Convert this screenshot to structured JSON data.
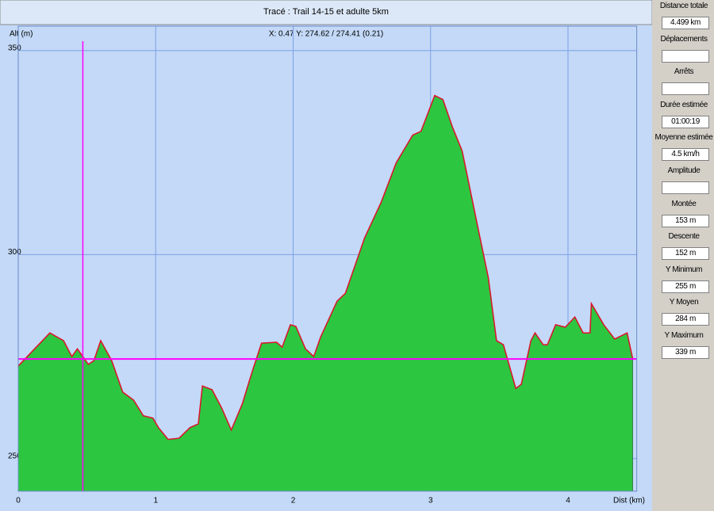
{
  "chart_data": {
    "type": "area",
    "title": "Tracé : Trail 14-15 et adulte 5km",
    "x_label": "Dist (km)",
    "y_label": "Alt (m)",
    "crosshair": {
      "text": "X: 0.47 Y: 274.62 / 274.41 (0.21)",
      "x": 0.47,
      "y": 274.41,
      "color": "#ff00ff"
    },
    "xlim": [
      0,
      4.5
    ],
    "ylim": [
      242,
      356
    ],
    "xticks": [
      0,
      1,
      2,
      3,
      4
    ],
    "yticks": [
      250,
      300,
      350
    ],
    "grid": true,
    "series": [
      {
        "color": "#2cc640",
        "line_color": "#e0102a",
        "x": [
          0,
          0.23,
          0.33,
          0.39,
          0.43,
          0.51,
          0.55,
          0.6,
          0.68,
          0.76,
          0.84,
          0.91,
          0.98,
          1.02,
          1.09,
          1.17,
          1.25,
          1.31,
          1.34,
          1.41,
          1.48,
          1.55,
          1.63,
          1.7,
          1.77,
          1.88,
          1.92,
          1.98,
          2.02,
          2.09,
          2.15,
          2.2,
          2.32,
          2.38,
          2.52,
          2.64,
          2.75,
          2.87,
          2.93,
          3.03,
          3.09,
          3.16,
          3.23,
          3.36,
          3.42,
          3.48,
          3.53,
          3.62,
          3.66,
          3.73,
          3.76,
          3.82,
          3.85,
          3.91,
          3.98,
          4.05,
          4.11,
          4.16,
          4.17,
          4.26,
          4.34,
          4.43,
          4.47
        ],
        "values": [
          272.7,
          280.8,
          278.9,
          275.0,
          276.9,
          273.1,
          274.0,
          278.9,
          274.0,
          266.3,
          264.3,
          260.5,
          259.9,
          257.6,
          254.7,
          255.0,
          257.6,
          258.5,
          267.8,
          266.9,
          262.4,
          257.0,
          263.4,
          271.1,
          278.3,
          278.5,
          277.3,
          282.8,
          282.4,
          276.9,
          275.0,
          279.8,
          288.6,
          290.5,
          304.1,
          312.8,
          322.5,
          329.3,
          330.2,
          339.0,
          338.0,
          331.2,
          325.4,
          304.1,
          294.4,
          278.9,
          277.9,
          267.2,
          268.2,
          278.9,
          280.8,
          277.9,
          277.9,
          282.8,
          282.2,
          284.7,
          280.8,
          280.8,
          288.0,
          282.8,
          279.3,
          280.8,
          274.6
        ]
      }
    ]
  },
  "panel": [
    {
      "label": "Distance totale",
      "value": "4.499 km"
    },
    {
      "label": "Déplacements"
    },
    {
      "label": "Arrêts"
    },
    {
      "label": "Durée estimée",
      "value": "01:00:19"
    },
    {
      "label": "Moyenne estimée",
      "value": "4.5 km/h"
    },
    {
      "label": "Amplitude"
    },
    {
      "label": "Montée",
      "value": "153 m"
    },
    {
      "label": "Descente",
      "value": "152 m"
    },
    {
      "label": "Y Minimum",
      "value": "255 m"
    },
    {
      "label": "Y Moyen",
      "value": "284 m"
    },
    {
      "label": "Y Maximum",
      "value": "339 m"
    }
  ]
}
